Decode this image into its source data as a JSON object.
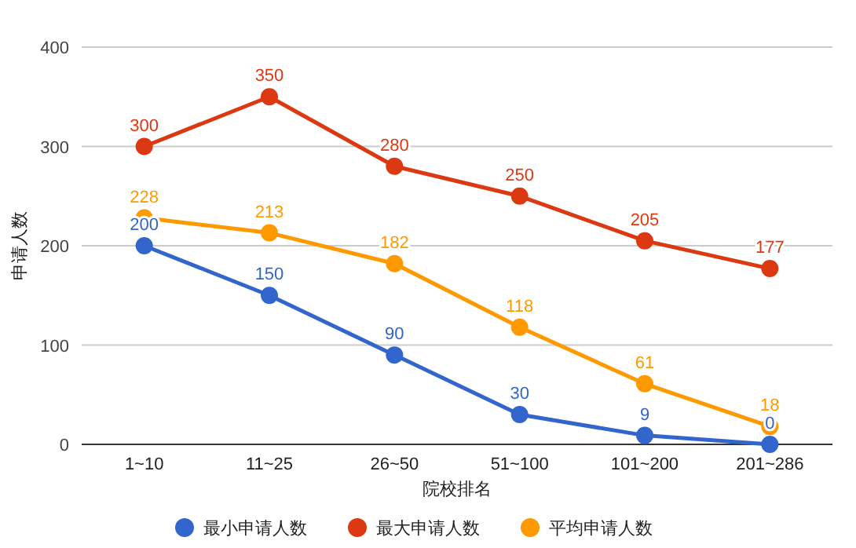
{
  "chart_data": {
    "type": "line",
    "xlabel": "院校排名",
    "ylabel": "申请人数",
    "categories": [
      "1~10",
      "11~25",
      "26~50",
      "51~100",
      "101~200",
      "201~286"
    ],
    "series": [
      {
        "name": "最小申请人数",
        "color": "#3366cc",
        "values": [
          200,
          150,
          90,
          30,
          9,
          0
        ]
      },
      {
        "name": "最大申请人数",
        "color": "#dc3912",
        "values": [
          300,
          350,
          280,
          250,
          205,
          177
        ]
      },
      {
        "name": "平均申请人数",
        "color": "#ff9900",
        "values": [
          228,
          213,
          182,
          118,
          61,
          18
        ]
      }
    ],
    "ylim": [
      0,
      400
    ],
    "yticks": [
      0,
      100,
      200,
      300,
      400
    ],
    "grid": "y",
    "legend": "bottom",
    "marker": "circle",
    "line_style": "solid",
    "data_labels": true
  }
}
